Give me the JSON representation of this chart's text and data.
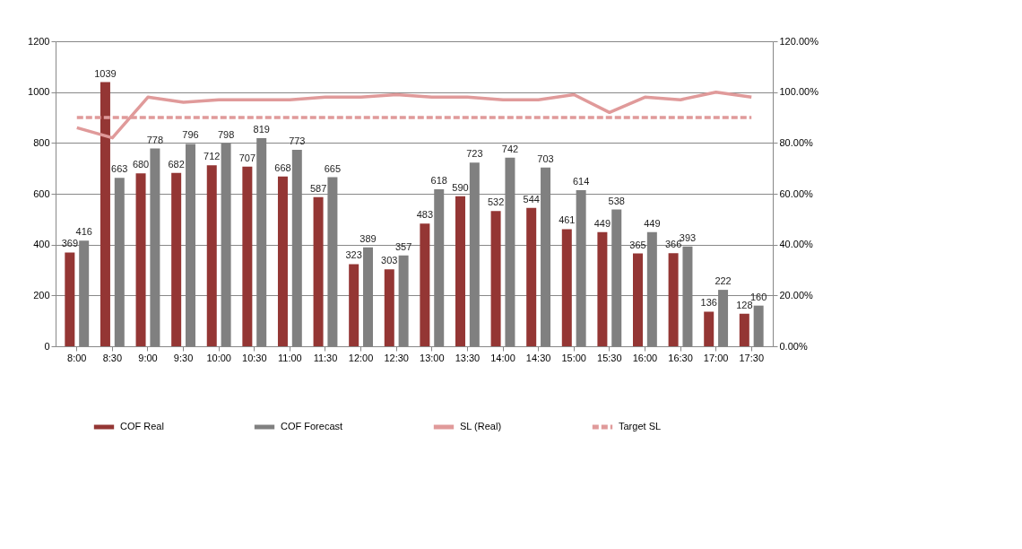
{
  "chart_data": {
    "type": "bar",
    "categories": [
      "8:00",
      "8:30",
      "9:00",
      "9:30",
      "10:00",
      "10:30",
      "11:00",
      "11:30",
      "12:00",
      "12:30",
      "13:00",
      "13:30",
      "14:00",
      "14:30",
      "15:00",
      "15:30",
      "16:00",
      "16:30",
      "17:00",
      "17:30"
    ],
    "series": [
      {
        "name": "COF Real",
        "type": "bar",
        "color": "#943634",
        "values": [
          369,
          1039,
          680,
          682,
          712,
          707,
          668,
          587,
          323,
          303,
          483,
          590,
          532,
          544,
          461,
          449,
          365,
          366,
          136,
          128
        ],
        "value_labels": [
          "369",
          "1039",
          "680",
          "682",
          "712",
          "707",
          "668",
          "587",
          "323",
          "303",
          "483",
          "590",
          "532",
          "544",
          "461",
          "449",
          "365",
          "366",
          "136",
          "128"
        ]
      },
      {
        "name": "COF Forecast",
        "type": "bar",
        "color": "#808080",
        "values": [
          416,
          663,
          778,
          796,
          798,
          819,
          773,
          665,
          389,
          357,
          618,
          723,
          742,
          703,
          614,
          538,
          449,
          393,
          222,
          160
        ],
        "value_labels": [
          "416",
          "663",
          "778",
          "796",
          "798",
          "819",
          "773",
          "665",
          "389",
          "357",
          "618",
          "723",
          "742",
          "703",
          "614",
          "538",
          "449",
          "393",
          "222",
          "160"
        ]
      },
      {
        "name": "SL (Real)",
        "type": "line",
        "axis": "y2",
        "line_style": "solid",
        "color": "#e09a9a",
        "values": [
          86,
          82,
          98,
          96,
          97,
          97,
          97,
          98,
          98,
          99,
          98,
          98,
          97,
          97,
          99,
          92,
          98,
          97,
          100,
          98
        ]
      },
      {
        "name": "Target SL",
        "type": "line",
        "axis": "y2",
        "line_style": "dashed",
        "color": "#e09a9a",
        "values": [
          90,
          90,
          90,
          90,
          90,
          90,
          90,
          90,
          90,
          90,
          90,
          90,
          90,
          90,
          90,
          90,
          90,
          90,
          90,
          90
        ]
      }
    ],
    "ylim": [
      0,
      1200
    ],
    "yticks": [
      0,
      200,
      400,
      600,
      800,
      1000,
      1200
    ],
    "y2lim": [
      0,
      120
    ],
    "y2ticks": [
      {
        "value": 0,
        "label": "0.00%"
      },
      {
        "value": 20,
        "label": "20.00%"
      },
      {
        "value": 40,
        "label": "40.00%"
      },
      {
        "value": 60,
        "label": "60.00%"
      },
      {
        "value": 80,
        "label": "80.00%"
      },
      {
        "value": 100,
        "label": "100.00%"
      },
      {
        "value": 120,
        "label": "120.00%"
      }
    ],
    "grid": "y",
    "legend": "bottom"
  }
}
